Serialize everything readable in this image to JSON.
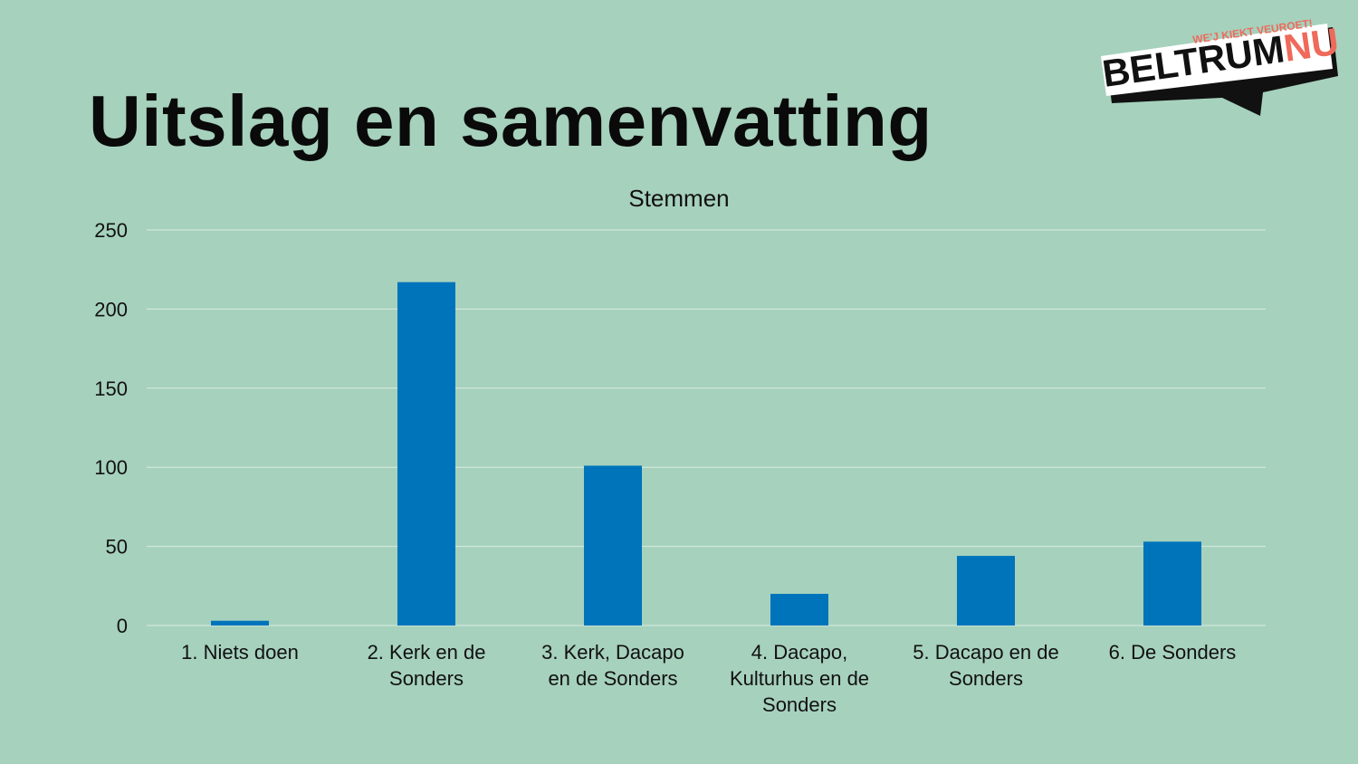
{
  "slide": {
    "title": "Uitslag en samenvatting"
  },
  "logo": {
    "tagline": "WE'J KIEKT VEUROET!",
    "name_part1": "BELTRUM",
    "name_part2": "NU"
  },
  "colors": {
    "background": "#a6d1bd",
    "bar": "#0074bb",
    "gridline": "#d9ece2",
    "logo_accent": "#ef6a5a"
  },
  "chart_data": {
    "type": "bar",
    "title": "Stemmen",
    "xlabel": "",
    "ylabel": "",
    "categories": [
      "1. Niets doen",
      "2. Kerk en de Sonders",
      "3. Kerk, Dacapo en de Sonders",
      "4. Dacapo, Kulturhus en de Sonders",
      "5. Dacapo en de Sonders",
      "6. De Sonders"
    ],
    "category_lines": [
      [
        "1. Niets doen"
      ],
      [
        "2. Kerk en de",
        "Sonders"
      ],
      [
        "3. Kerk, Dacapo",
        "en de Sonders"
      ],
      [
        "4. Dacapo,",
        "Kulturhus en de",
        "Sonders"
      ],
      [
        "5. Dacapo en de",
        "Sonders"
      ],
      [
        "6. De Sonders"
      ]
    ],
    "values": [
      3,
      217,
      101,
      20,
      44,
      53
    ],
    "ylim": [
      0,
      250
    ],
    "yticks": [
      0,
      50,
      100,
      150,
      200,
      250
    ],
    "grid": true,
    "legend": "none"
  }
}
